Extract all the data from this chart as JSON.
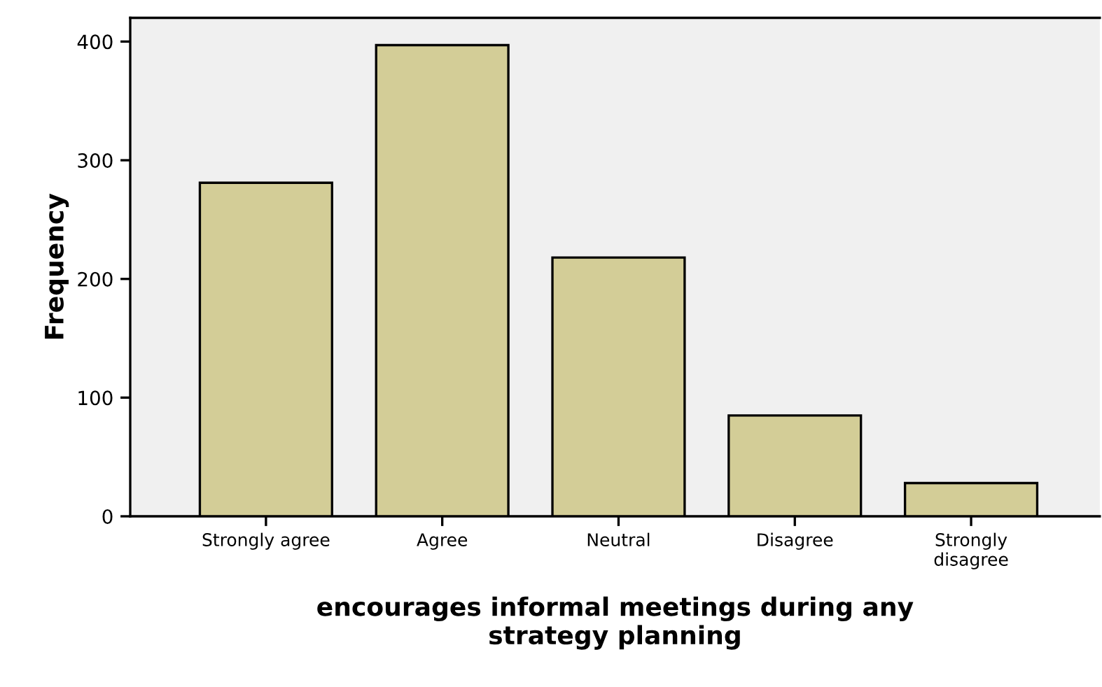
{
  "chart_data": {
    "type": "bar",
    "categories": [
      "Strongly agree",
      "Agree",
      "Neutral",
      "Disagree",
      "Strongly\ndisagree"
    ],
    "values": [
      281,
      397,
      218,
      85,
      28
    ],
    "color": "#d3cd97",
    "ylabel": "Frequency",
    "xlabel": "encourages informal meetings during any\nstrategy planning",
    "ylim": [
      0,
      420
    ],
    "yticks": [
      0,
      100,
      200,
      300,
      400
    ],
    "grid": false,
    "legend": false
  }
}
